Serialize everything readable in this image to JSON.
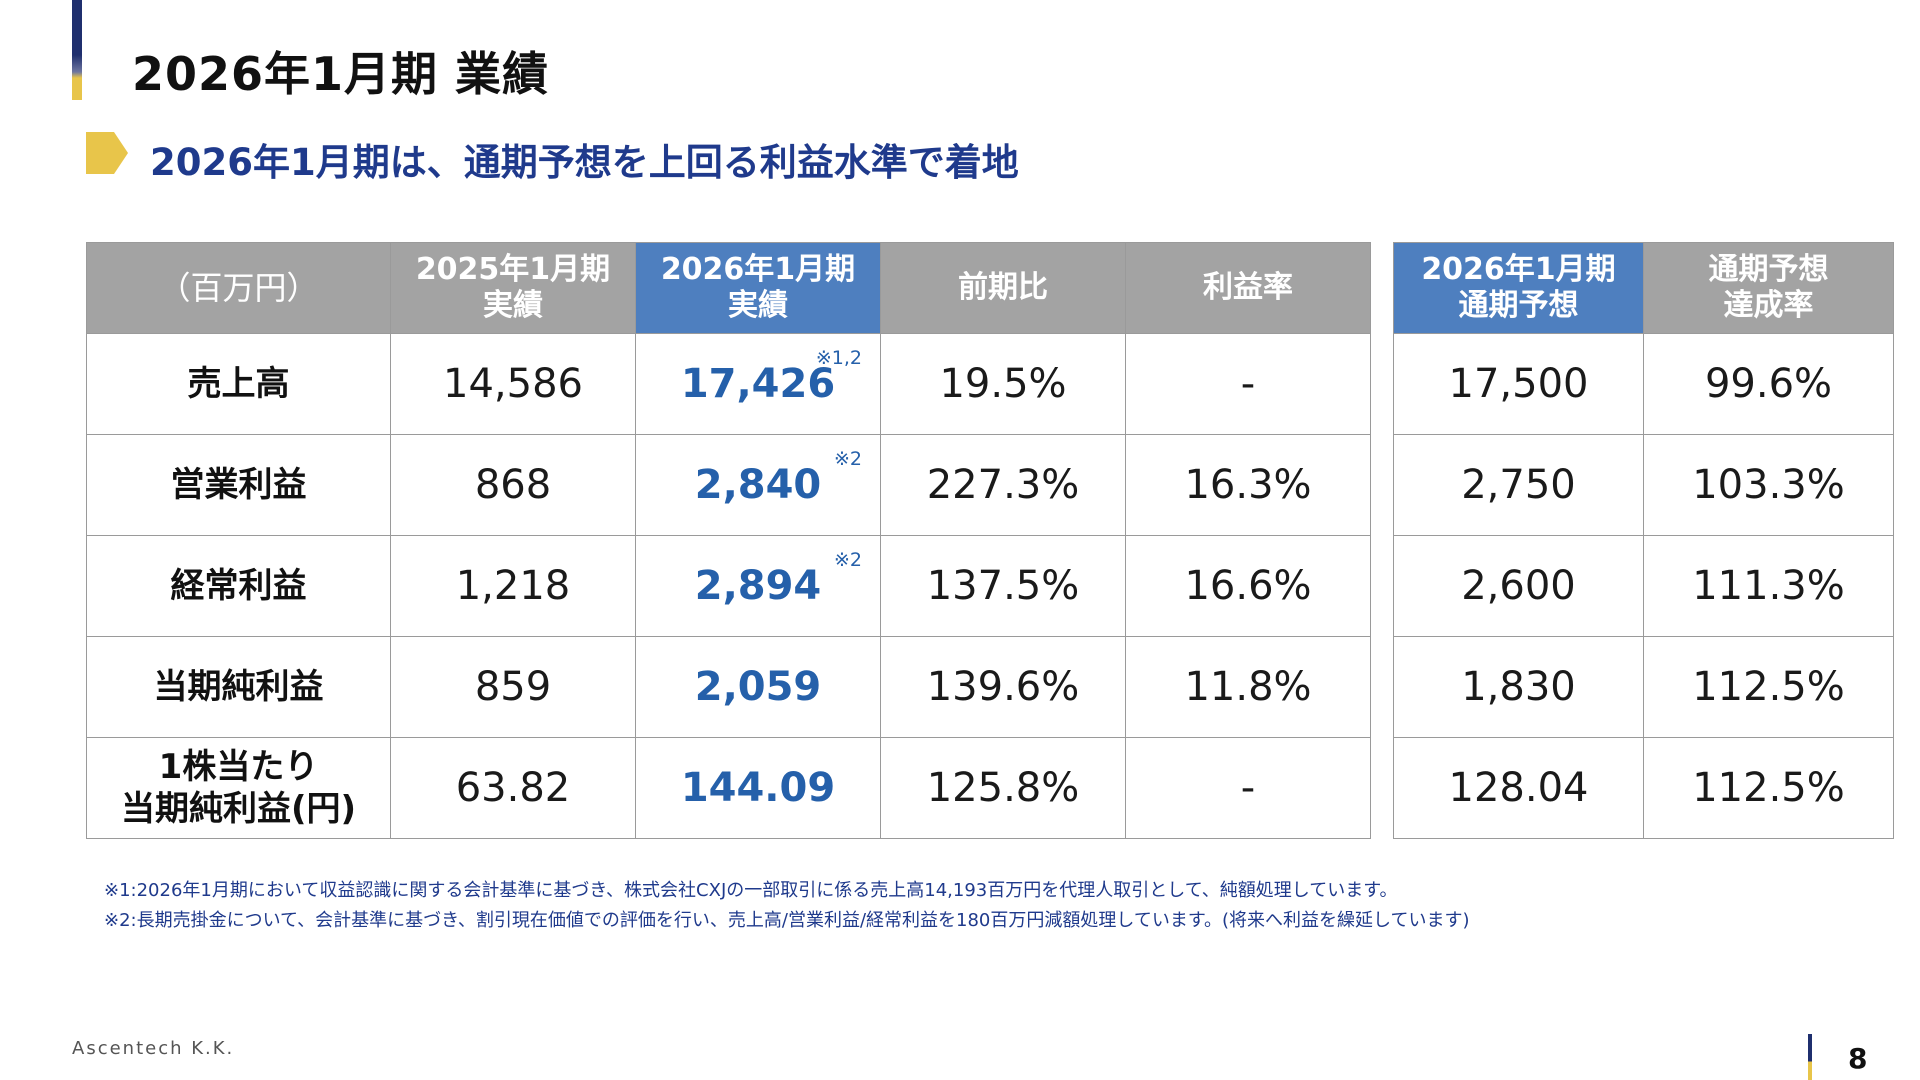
{
  "header": {
    "title": "2026年1月期 業績",
    "subtitle": "2026年1月期は、通期予想を上回る利益水準で着地"
  },
  "main_table": {
    "headers": {
      "unit": "（百万円）",
      "prev": [
        "2025年1月期",
        "実績"
      ],
      "curr": [
        "2026年1月期",
        "実績"
      ],
      "yoy": "前期比",
      "margin": "利益率"
    },
    "rows": [
      {
        "label": [
          "売上高"
        ],
        "prev": "14,586",
        "curr": "17,426",
        "note": "※1,2",
        "yoy": "19.5%",
        "margin": "-"
      },
      {
        "label": [
          "営業利益"
        ],
        "prev": "868",
        "curr": "2,840",
        "note": "※2",
        "yoy": "227.3%",
        "margin": "16.3%"
      },
      {
        "label": [
          "経常利益"
        ],
        "prev": "1,218",
        "curr": "2,894",
        "note": "※2",
        "yoy": "137.5%",
        "margin": "16.6%"
      },
      {
        "label": [
          "当期純利益"
        ],
        "prev": "859",
        "curr": "2,059",
        "note": "",
        "yoy": "139.6%",
        "margin": "11.8%"
      },
      {
        "label": [
          "1株当たり",
          "当期純利益(円)"
        ],
        "prev": "63.82",
        "curr": "144.09",
        "note": "",
        "yoy": "125.8%",
        "margin": "-"
      }
    ]
  },
  "forecast_table": {
    "headers": {
      "forecast": [
        "2026年1月期",
        "通期予想"
      ],
      "achievement": [
        "通期予想",
        "達成率"
      ]
    },
    "rows": [
      {
        "forecast": "17,500",
        "achievement": "99.6%"
      },
      {
        "forecast": "2,750",
        "achievement": "103.3%"
      },
      {
        "forecast": "2,600",
        "achievement": "111.3%"
      },
      {
        "forecast": "1,830",
        "achievement": "112.5%"
      },
      {
        "forecast": "128.04",
        "achievement": "112.5%"
      }
    ]
  },
  "footnotes": [
    "※1:2026年1月期において収益認識に関する会計基準に基づき、株式会社CXJの一部取引に係る売上高14,193百万円を代理人取引として、純額処理しています。",
    "※2:長期売掛金について、会計基準に基づき、割引現在価値での評価を行い、売上高/営業利益/経常利益を180百万円減額処理しています。(将来へ利益を繰延しています)"
  ],
  "footer": {
    "company": "Ascentech K.K.",
    "page_number": "8"
  },
  "colors": {
    "navy": "#1f3a8c",
    "accent_yellow": "#e8c54a",
    "header_gray": "#a3a3a3",
    "header_blue": "#4e7fbf",
    "highlight_value": "#2560aa"
  }
}
